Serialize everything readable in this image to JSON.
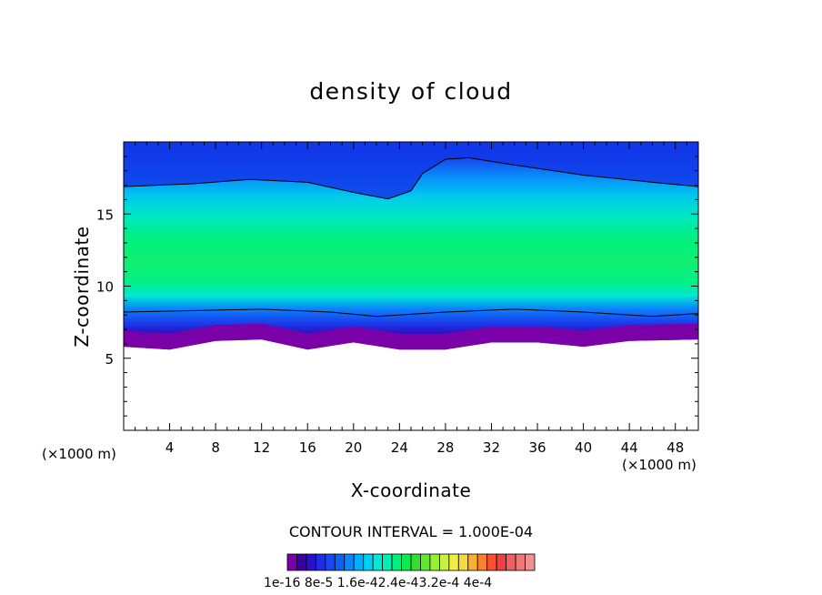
{
  "chart_data": {
    "type": "heatmap",
    "title": "density of cloud",
    "xlabel": "X-coordinate",
    "ylabel": "Z-coordinate",
    "x_unit": "(×1000 m)",
    "xlim": [
      0,
      50
    ],
    "ylim": [
      0,
      20
    ],
    "x_ticks": [
      "4",
      "8",
      "12",
      "16",
      "20",
      "24",
      "28",
      "32",
      "36",
      "40",
      "44",
      "48"
    ],
    "x_tick_values": [
      4,
      8,
      12,
      16,
      20,
      24,
      28,
      32,
      36,
      40,
      44,
      48
    ],
    "y_ticks": [
      "5",
      "10",
      "15"
    ],
    "y_tick_values": [
      5,
      10,
      15
    ],
    "contour_interval": "CONTOUR INTERVAL = 1.000E-04",
    "colorbar_labels": "1e-16 8e-5 1.6e-42.4e-43.2e-4 4e-4",
    "colorbar_colors": [
      "#7a00a8",
      "#3a00a8",
      "#2a10c8",
      "#1f2fe0",
      "#1848f0",
      "#1060f8",
      "#0a88fa",
      "#00b0fa",
      "#00d0f0",
      "#00e8d8",
      "#00f0b0",
      "#00f080",
      "#10e850",
      "#30e030",
      "#60e830",
      "#98f030",
      "#c8f040",
      "#f0f040",
      "#f8d840",
      "#f8b030",
      "#f88030",
      "#f85030",
      "#f04040",
      "#f06060",
      "#f07878",
      "#f09090"
    ],
    "cloud_top_contour": [
      [
        0,
        16.9
      ],
      [
        6,
        17.1
      ],
      [
        11,
        17.4
      ],
      [
        16,
        17.2
      ],
      [
        20,
        16.5
      ],
      [
        23,
        16.05
      ],
      [
        25,
        16.6
      ],
      [
        26,
        17.8
      ],
      [
        28,
        18.8
      ],
      [
        30,
        18.9
      ],
      [
        34,
        18.4
      ],
      [
        40,
        17.7
      ],
      [
        46,
        17.2
      ],
      [
        50,
        16.9
      ]
    ],
    "cloud_base": [
      [
        0,
        5.8
      ],
      [
        4,
        5.6
      ],
      [
        8,
        6.2
      ],
      [
        12,
        6.3
      ],
      [
        16,
        5.6
      ],
      [
        20,
        6.1
      ],
      [
        24,
        5.6
      ],
      [
        28,
        5.6
      ],
      [
        32,
        6.1
      ],
      [
        36,
        6.1
      ],
      [
        40,
        5.8
      ],
      [
        44,
        6.2
      ],
      [
        50,
        6.3
      ]
    ],
    "lower_contour": [
      [
        0,
        8.2
      ],
      [
        6,
        8.3
      ],
      [
        12,
        8.4
      ],
      [
        18,
        8.2
      ],
      [
        22,
        7.9
      ],
      [
        28,
        8.2
      ],
      [
        34,
        8.4
      ],
      [
        40,
        8.2
      ],
      [
        46,
        7.9
      ],
      [
        50,
        8.1
      ]
    ]
  }
}
